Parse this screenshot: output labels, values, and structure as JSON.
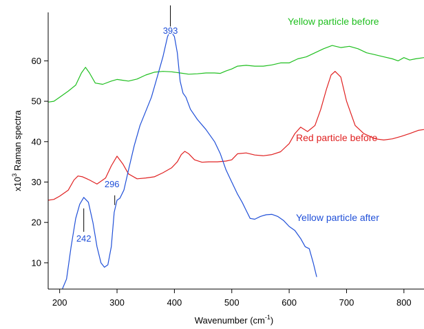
{
  "chart_data": {
    "type": "line",
    "title": "",
    "xlabel": "Wavenumber (cm",
    "xlabel_sup": "-1",
    "xlabel_suffix": ")",
    "ylabel_prefix": "x10",
    "ylabel_sup": "3",
    "ylabel_suffix": " Raman spectra",
    "xlim": [
      180,
      835
    ],
    "ylim": [
      3.5,
      72
    ],
    "x_ticks": [
      200,
      300,
      400,
      500,
      600,
      700,
      800
    ],
    "y_ticks": [
      10,
      20,
      30,
      40,
      50,
      60
    ],
    "grid": false,
    "series": [
      {
        "name": "Yellow particle before",
        "color": "#1fbf1f",
        "points": [
          [
            180,
            49.8
          ],
          [
            190,
            50
          ],
          [
            200,
            51
          ],
          [
            215,
            52.5
          ],
          [
            228,
            54
          ],
          [
            238,
            57
          ],
          [
            245,
            58.4
          ],
          [
            252,
            57
          ],
          [
            262,
            54.5
          ],
          [
            275,
            54.2
          ],
          [
            290,
            55
          ],
          [
            300,
            55.4
          ],
          [
            310,
            55.2
          ],
          [
            320,
            55
          ],
          [
            335,
            55.5
          ],
          [
            350,
            56.5
          ],
          [
            365,
            57.2
          ],
          [
            380,
            57.4
          ],
          [
            395,
            57.3
          ],
          [
            410,
            57
          ],
          [
            425,
            56.7
          ],
          [
            440,
            56.8
          ],
          [
            455,
            57
          ],
          [
            470,
            57
          ],
          [
            480,
            56.9
          ],
          [
            490,
            57.5
          ],
          [
            500,
            58
          ],
          [
            510,
            58.7
          ],
          [
            525,
            58.9
          ],
          [
            540,
            58.7
          ],
          [
            555,
            58.7
          ],
          [
            570,
            59
          ],
          [
            585,
            59.5
          ],
          [
            600,
            59.5
          ],
          [
            615,
            60.5
          ],
          [
            630,
            61
          ],
          [
            645,
            62
          ],
          [
            660,
            63
          ],
          [
            675,
            63.8
          ],
          [
            690,
            63.3
          ],
          [
            705,
            63.6
          ],
          [
            720,
            63
          ],
          [
            735,
            62
          ],
          [
            750,
            61.5
          ],
          [
            765,
            61
          ],
          [
            780,
            60.5
          ],
          [
            790,
            60
          ],
          [
            800,
            60.8
          ],
          [
            810,
            60.2
          ],
          [
            820,
            60.5
          ],
          [
            835,
            60.8
          ]
        ]
      },
      {
        "name": "Red particle before",
        "color": "#e02020",
        "points": [
          [
            180,
            25.5
          ],
          [
            190,
            25.7
          ],
          [
            200,
            26.5
          ],
          [
            215,
            28
          ],
          [
            225,
            30.5
          ],
          [
            232,
            31.5
          ],
          [
            240,
            31.3
          ],
          [
            252,
            30.5
          ],
          [
            265,
            29.5
          ],
          [
            280,
            31
          ],
          [
            290,
            34
          ],
          [
            300,
            36.4
          ],
          [
            310,
            34.5
          ],
          [
            320,
            32
          ],
          [
            335,
            30.8
          ],
          [
            350,
            31
          ],
          [
            365,
            31.3
          ],
          [
            380,
            32.3
          ],
          [
            395,
            33.5
          ],
          [
            405,
            35
          ],
          [
            412,
            36.8
          ],
          [
            418,
            37.6
          ],
          [
            425,
            37
          ],
          [
            435,
            35.5
          ],
          [
            448,
            34.9
          ],
          [
            460,
            35
          ],
          [
            475,
            35
          ],
          [
            490,
            35.2
          ],
          [
            500,
            35.5
          ],
          [
            510,
            37
          ],
          [
            525,
            37.2
          ],
          [
            540,
            36.7
          ],
          [
            555,
            36.5
          ],
          [
            570,
            36.8
          ],
          [
            585,
            37.5
          ],
          [
            600,
            39.5
          ],
          [
            610,
            42
          ],
          [
            620,
            43.6
          ],
          [
            632,
            42.5
          ],
          [
            645,
            44
          ],
          [
            655,
            48
          ],
          [
            665,
            53
          ],
          [
            673,
            56.5
          ],
          [
            680,
            57.4
          ],
          [
            690,
            56
          ],
          [
            700,
            50
          ],
          [
            715,
            44
          ],
          [
            730,
            42
          ],
          [
            750,
            40.7
          ],
          [
            765,
            40.4
          ],
          [
            780,
            40.7
          ],
          [
            795,
            41.3
          ],
          [
            810,
            42
          ],
          [
            825,
            42.8
          ],
          [
            835,
            43
          ]
        ]
      },
      {
        "name": "Yellow particle after",
        "color": "#1f4fd8",
        "points": [
          [
            205,
            3.6
          ],
          [
            212,
            6
          ],
          [
            220,
            14
          ],
          [
            228,
            21
          ],
          [
            235,
            24.5
          ],
          [
            242,
            26.2
          ],
          [
            250,
            25
          ],
          [
            258,
            20
          ],
          [
            265,
            14
          ],
          [
            272,
            10
          ],
          [
            278,
            8.9
          ],
          [
            284,
            9.5
          ],
          [
            290,
            14
          ],
          [
            295,
            22.5
          ],
          [
            300,
            25.5
          ],
          [
            305,
            26
          ],
          [
            312,
            28
          ],
          [
            320,
            33
          ],
          [
            330,
            39
          ],
          [
            340,
            44
          ],
          [
            350,
            47.5
          ],
          [
            360,
            51
          ],
          [
            370,
            56
          ],
          [
            380,
            61
          ],
          [
            388,
            66
          ],
          [
            393,
            67.6
          ],
          [
            400,
            66
          ],
          [
            405,
            62
          ],
          [
            410,
            55
          ],
          [
            415,
            52
          ],
          [
            420,
            51
          ],
          [
            428,
            48
          ],
          [
            440,
            45.5
          ],
          [
            455,
            43
          ],
          [
            470,
            40
          ],
          [
            480,
            37
          ],
          [
            490,
            33
          ],
          [
            500,
            30
          ],
          [
            510,
            27
          ],
          [
            518,
            25
          ],
          [
            525,
            23
          ],
          [
            532,
            21
          ],
          [
            540,
            20.8
          ],
          [
            550,
            21.5
          ],
          [
            560,
            21.9
          ],
          [
            570,
            22
          ],
          [
            580,
            21.5
          ],
          [
            590,
            20.5
          ],
          [
            600,
            19
          ],
          [
            610,
            18
          ],
          [
            620,
            16
          ],
          [
            628,
            14
          ],
          [
            635,
            13.5
          ],
          [
            642,
            10
          ],
          [
            648,
            6.5
          ]
        ]
      }
    ],
    "series_labels": [
      "Yellow particle before",
      "Red particle before",
      "Yellow particle after"
    ],
    "annotations": [
      {
        "text": "393",
        "x": 393,
        "y": 67.6,
        "series": 2
      },
      {
        "text": "296",
        "x": 296,
        "y": 25,
        "series": 2
      },
      {
        "text": "242",
        "x": 242,
        "y": 26.2,
        "series": 2
      }
    ]
  }
}
